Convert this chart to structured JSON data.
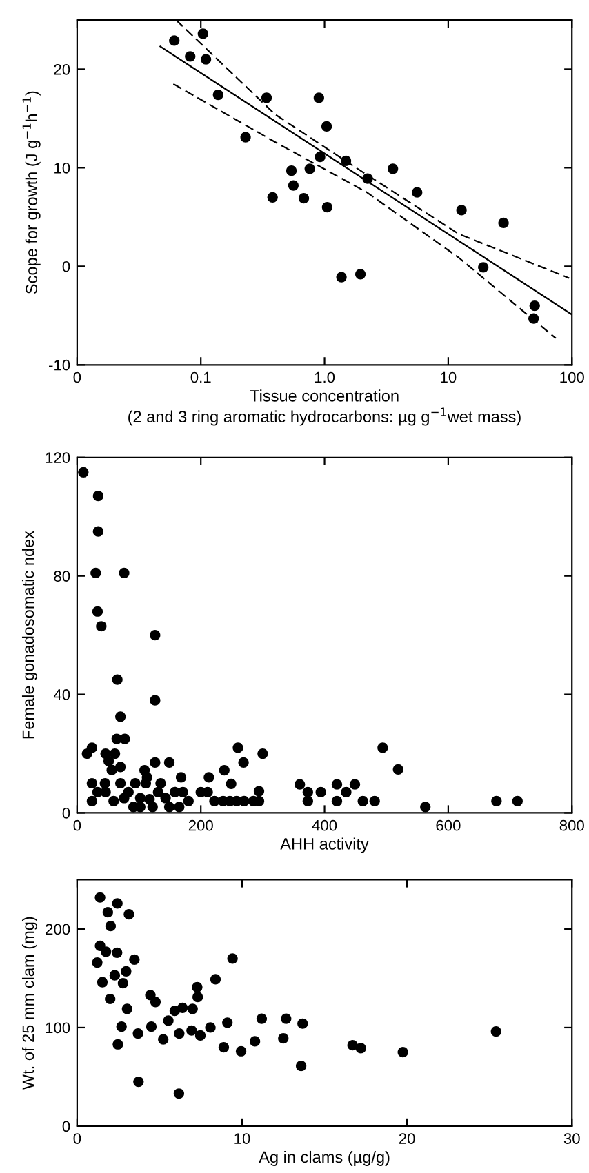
{
  "chart_data": [
    {
      "type": "scatter",
      "xlabel": "Tissue concentration\n(2 and 3 ring aromatic hydrocarbons: µg g$^{−1}$wet mass)",
      "ylabel": "Scope for growth (J g$^{−1}$h$^{−1}$)",
      "log": "x",
      "xlim": [
        0.01,
        100
      ],
      "ylim": [
        -10,
        25
      ],
      "xticks": [
        {
          "value": 0.01,
          "label": "0"
        },
        0.1,
        {
          "value": 1,
          "label": "1.0"
        },
        10,
        100
      ],
      "yticks": [
        -10,
        0,
        10,
        20
      ],
      "grid": false,
      "legend": false,
      "marker": "circle",
      "series": [
        {
          "color": "#000000",
          "x": [
            0.061,
            0.082,
            0.104,
            0.11,
            0.138,
            0.23,
            0.34,
            0.38,
            0.54,
            0.56,
            0.68,
            0.76,
            0.9,
            0.92,
            1.04,
            1.05,
            1.37,
            1.49,
            1.95,
            2.23,
            3.57,
            5.6,
            12.8,
            19.2,
            28,
            50,
            49
          ],
          "values": [
            22.9,
            21.3,
            23.6,
            21.0,
            17.4,
            13.1,
            17.1,
            7.0,
            9.7,
            8.2,
            6.9,
            9.9,
            17.1,
            11.1,
            14.2,
            6.0,
            -1.1,
            10.7,
            -0.8,
            8.9,
            9.9,
            7.5,
            5.7,
            -0.1,
            4.4,
            -4.0,
            -5.3
          ]
        },
        {
          "type": "line",
          "color": "#000000",
          "line_style": "solid",
          "marker": "none",
          "x": [
            0.047,
            100
          ],
          "values": [
            22.3,
            -4.9
          ]
        },
        {
          "type": "line",
          "color": "#000000",
          "line_style": "dashed",
          "marker": "none",
          "x": [
            0.063,
            0.4,
            1.56,
            12.1,
            95
          ],
          "values": [
            25.0,
            15.4,
            10.5,
            3.3,
            -1.2
          ]
        },
        {
          "type": "line",
          "color": "#000000",
          "line_style": "dashed",
          "marker": "none",
          "x": [
            0.06,
            0.4,
            2.2,
            12.1,
            74
          ],
          "values": [
            18.5,
            12.6,
            7.5,
            0.9,
            -7.3
          ]
        }
      ]
    },
    {
      "type": "scatter",
      "xlabel": "AHH activity",
      "ylabel": "Female gonadosomatic ndex",
      "xlim": [
        0,
        800
      ],
      "ylim": [
        0,
        120
      ],
      "xticks": [
        0,
        200,
        400,
        600,
        800
      ],
      "yticks": [
        0,
        40,
        80,
        120
      ],
      "grid": false,
      "legend": false,
      "marker": "circle",
      "series": [
        {
          "color": "#000000",
          "x": [
            10,
            34,
            34,
            30,
            76,
            33,
            39,
            126,
            65,
            126,
            70,
            64,
            77,
            16,
            24,
            46,
            61,
            51,
            56,
            70,
            109,
            126,
            149,
            168,
            213,
            238,
            249,
            260,
            269,
            300,
            294,
            360,
            373,
            394,
            420,
            435,
            449,
            494,
            519,
            563,
            678,
            712,
            24,
            33,
            45,
            46,
            59,
            70,
            76,
            83,
            91,
            94,
            102,
            102,
            111,
            113,
            117,
            122,
            131,
            135,
            143,
            149,
            158,
            165,
            171,
            180,
            24,
            200,
            211,
            222,
            236,
            247,
            258,
            270,
            285,
            294,
            373,
            420,
            462,
            481
          ],
          "values": [
            115,
            107,
            95,
            81,
            81,
            68,
            63,
            60,
            45,
            38,
            32.5,
            25,
            25,
            20,
            22,
            20,
            20,
            17.5,
            14.5,
            15.5,
            14.4,
            17,
            17,
            12,
            12,
            14.4,
            9.8,
            22,
            17,
            20,
            7.3,
            9.6,
            7,
            7,
            9.6,
            7,
            9.6,
            22,
            14.7,
            2,
            4,
            4,
            10,
            7,
            10,
            7,
            4,
            10,
            5,
            7,
            2,
            10,
            5,
            2,
            10,
            12,
            4.6,
            2,
            7,
            10,
            5,
            2,
            7,
            2,
            7,
            4,
            4,
            7,
            7,
            4,
            4,
            4,
            4,
            4,
            4,
            4,
            4,
            4,
            4,
            4
          ]
        }
      ]
    },
    {
      "type": "scatter",
      "xlabel": "Ag in clams (µg/g)",
      "ylabel": "Wt. of 25 mm clam (mg)",
      "xlim": [
        0,
        30
      ],
      "ylim": [
        0,
        250
      ],
      "xticks": [
        0,
        10,
        20,
        30
      ],
      "yticks": [
        0,
        100,
        200
      ],
      "grid": false,
      "legend": false,
      "marker": "circle",
      "series": [
        {
          "color": "#000000",
          "x": [
            1.39,
            1.86,
            2.44,
            3.14,
            2.03,
            1.39,
            1.75,
            2.42,
            1.22,
            3.47,
            1.53,
            2.28,
            2.97,
            2.78,
            2.0,
            3.03,
            2.69,
            2.47,
            3.69,
            3.72,
            4.44,
            4.75,
            4.5,
            5.22,
            5.53,
            5.92,
            6.39,
            6.19,
            6.17,
            7.0,
            6.94,
            7.28,
            7.31,
            7.47,
            8.08,
            8.39,
            8.89,
            9.11,
            9.42,
            9.94,
            10.78,
            11.19,
            12.5,
            12.67,
            13.67,
            13.58,
            16.7,
            17.2,
            19.75,
            25.4
          ],
          "values": [
            232,
            217,
            226,
            215,
            203,
            183,
            177,
            176,
            166,
            169,
            146,
            153,
            157,
            145,
            129,
            119,
            101,
            83,
            94,
            45,
            133,
            126,
            101,
            88,
            107,
            117,
            120,
            94,
            33,
            119,
            97,
            141,
            131,
            92,
            100,
            149,
            80,
            105,
            170,
            76,
            86,
            109,
            89,
            109,
            104,
            61,
            82,
            79,
            75,
            96
          ]
        }
      ]
    }
  ]
}
